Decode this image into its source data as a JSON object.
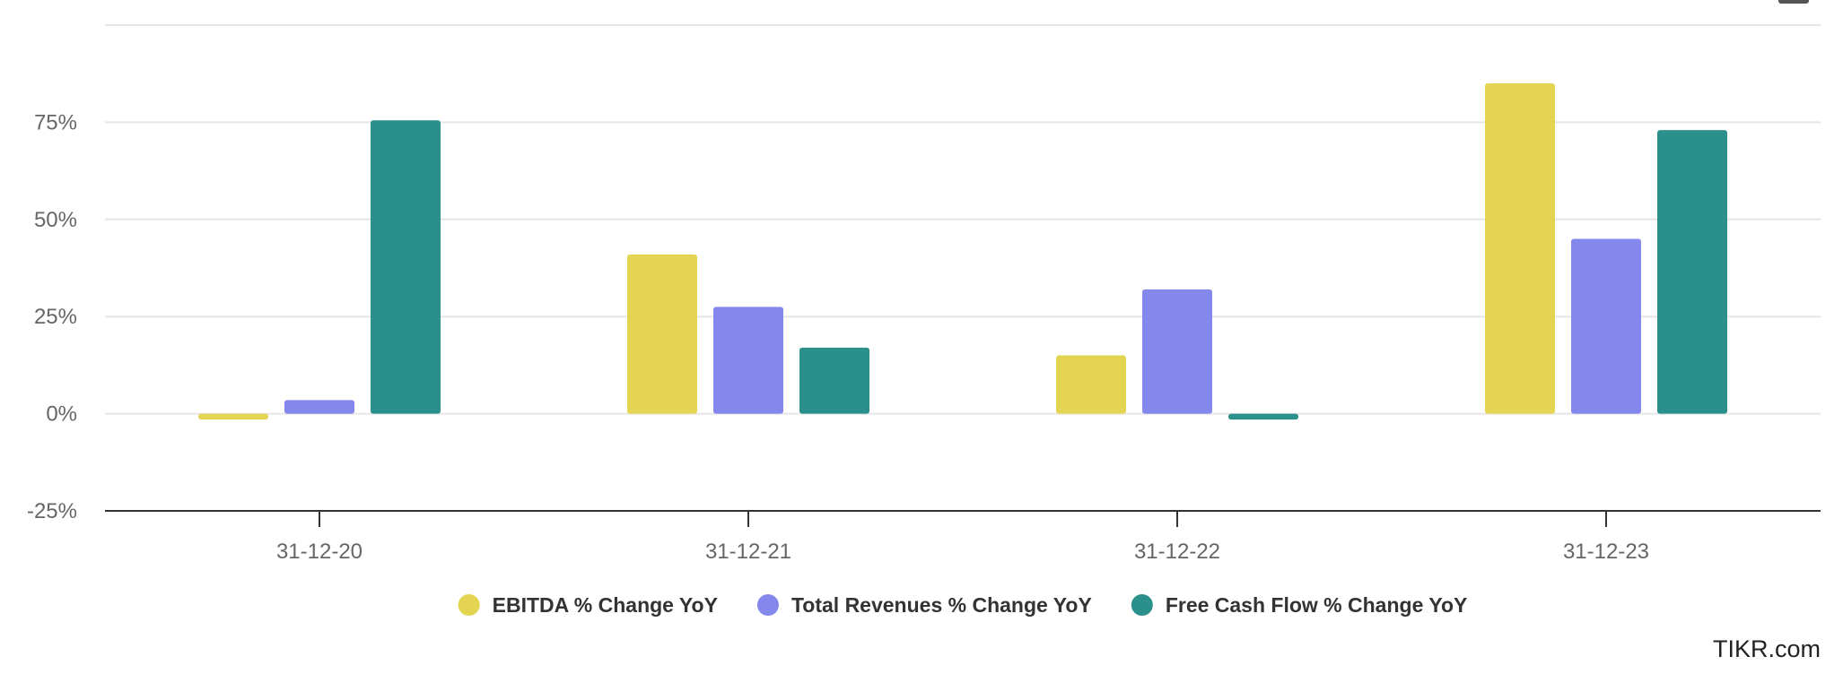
{
  "chart_data": {
    "type": "bar",
    "categories": [
      "31-12-20",
      "31-12-21",
      "31-12-22",
      "31-12-23"
    ],
    "series": [
      {
        "name": "EBITDA % Change YoY",
        "color": "#e3d452",
        "values": [
          -1.5,
          41,
          15,
          85
        ]
      },
      {
        "name": "Total Revenues % Change YoY",
        "color": "#8487eb",
        "values": [
          3.5,
          27.5,
          32,
          45
        ]
      },
      {
        "name": "Free Cash Flow % Change YoY",
        "color": "#2b908b",
        "values": [
          75.5,
          17,
          -1.5,
          73
        ]
      }
    ],
    "yticks": [
      -25,
      0,
      25,
      50,
      75
    ],
    "ytick_labels": [
      "-25%",
      "0%",
      "25%",
      "50%",
      "75%"
    ],
    "ylim": [
      -25,
      100
    ],
    "grid": true,
    "legend": "bottom-center",
    "title": "",
    "xlabel": "",
    "ylabel": ""
  },
  "watermark": "TIKR.com",
  "menu_icon": "menu-icon"
}
